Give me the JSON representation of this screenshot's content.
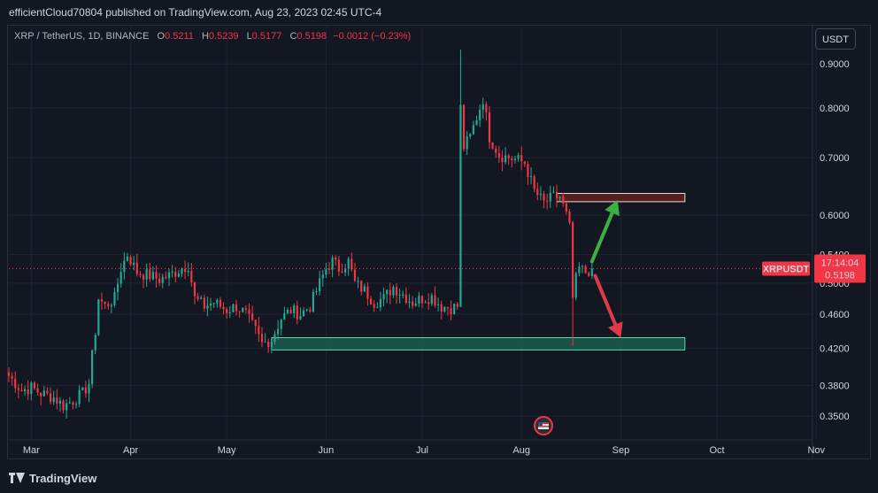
{
  "header": {
    "published_line": "efficientCloud70804 published on TradingView.com, Aug 23, 2023 02:45 UTC-4"
  },
  "legend": {
    "symbol": "XRP / TetherUS, 1D, BINANCE",
    "o_label": "O",
    "o_value": "0.5211",
    "h_label": "H",
    "h_value": "0.5239",
    "l_label": "L",
    "l_value": "0.5177",
    "c_label": "C",
    "c_value": "0.5198",
    "change": "−0.0012 (−0.23%)"
  },
  "currency_button": "USDT",
  "price_label": {
    "ticker": "XRPUSDT",
    "countdown": "17:14:04",
    "value": "0.5198"
  },
  "footer": {
    "brand": "TradingView"
  },
  "colors": {
    "up": "#22ab94",
    "down": "#f23645",
    "bg": "#131722",
    "green_zone": "#2db58c",
    "red_zone": "#c0392b",
    "arrow_green": "#3cb043",
    "arrow_red": "#e03a4a"
  },
  "icons": {
    "event": "us-flag-event-icon",
    "logo": "tradingview-logo-icon"
  },
  "chart_data": {
    "type": "candlestick",
    "title": "XRP / TetherUS, 1D, BINANCE",
    "y_scale": "log",
    "ylim": [
      0.33,
      0.96
    ],
    "xlim": [
      "2023-02-22",
      "2023-10-30"
    ],
    "y_ticks": [
      "0.9000",
      "0.8000",
      "0.7000",
      "0.6000",
      "0.5400",
      "0.5000",
      "0.4600",
      "0.4200",
      "0.3800",
      "0.3500"
    ],
    "x_ticks": [
      {
        "label": "Mar",
        "date": "2023-03-01"
      },
      {
        "label": "Apr",
        "date": "2023-04-01"
      },
      {
        "label": "May",
        "date": "2023-05-01"
      },
      {
        "label": "Jun",
        "date": "2023-06-01"
      },
      {
        "label": "Jul",
        "date": "2023-07-01"
      },
      {
        "label": "Aug",
        "date": "2023-08-01"
      },
      {
        "label": "Sep",
        "date": "2023-09-01"
      },
      {
        "label": "Oct",
        "date": "2023-10-01"
      },
      {
        "label": "Nov",
        "date": "2023-11-01"
      }
    ],
    "close_path": [
      [
        "2023-02-22",
        0.39
      ],
      [
        "2023-02-26",
        0.375
      ],
      [
        "2023-03-01",
        0.378
      ],
      [
        "2023-03-04",
        0.372
      ],
      [
        "2023-03-08",
        0.368
      ],
      [
        "2023-03-11",
        0.36
      ],
      [
        "2023-03-14",
        0.365
      ],
      [
        "2023-03-17",
        0.372
      ],
      [
        "2023-03-19",
        0.382
      ],
      [
        "2023-03-21",
        0.44
      ],
      [
        "2023-03-22",
        0.48
      ],
      [
        "2023-03-24",
        0.47
      ],
      [
        "2023-03-27",
        0.48
      ],
      [
        "2023-03-29",
        0.52
      ],
      [
        "2023-03-31",
        0.54
      ],
      [
        "2023-04-03",
        0.515
      ],
      [
        "2023-04-07",
        0.51
      ],
      [
        "2023-04-10",
        0.505
      ],
      [
        "2023-04-13",
        0.51
      ],
      [
        "2023-04-16",
        0.518
      ],
      [
        "2023-04-19",
        0.525
      ],
      [
        "2023-04-21",
        0.48
      ],
      [
        "2023-04-24",
        0.47
      ],
      [
        "2023-04-27",
        0.475
      ],
      [
        "2023-05-01",
        0.465
      ],
      [
        "2023-05-04",
        0.47
      ],
      [
        "2023-05-07",
        0.46
      ],
      [
        "2023-05-10",
        0.44
      ],
      [
        "2023-05-12",
        0.425
      ],
      [
        "2023-05-15",
        0.43
      ],
      [
        "2023-05-18",
        0.455
      ],
      [
        "2023-05-21",
        0.465
      ],
      [
        "2023-05-24",
        0.46
      ],
      [
        "2023-05-27",
        0.47
      ],
      [
        "2023-05-30",
        0.5
      ],
      [
        "2023-06-01",
        0.52
      ],
      [
        "2023-06-03",
        0.53
      ],
      [
        "2023-06-05",
        0.52
      ],
      [
        "2023-06-08",
        0.53
      ],
      [
        "2023-06-10",
        0.5
      ],
      [
        "2023-06-13",
        0.49
      ],
      [
        "2023-06-16",
        0.475
      ],
      [
        "2023-06-19",
        0.48
      ],
      [
        "2023-06-22",
        0.495
      ],
      [
        "2023-06-25",
        0.485
      ],
      [
        "2023-06-28",
        0.475
      ],
      [
        "2023-07-01",
        0.48
      ],
      [
        "2023-07-04",
        0.482
      ],
      [
        "2023-07-07",
        0.47
      ],
      [
        "2023-07-10",
        0.468
      ],
      [
        "2023-07-12",
        0.47
      ],
      [
        "2023-07-13",
        0.8
      ],
      [
        "2023-07-14",
        0.72
      ],
      [
        "2023-07-16",
        0.74
      ],
      [
        "2023-07-18",
        0.78
      ],
      [
        "2023-07-20",
        0.82
      ],
      [
        "2023-07-22",
        0.74
      ],
      [
        "2023-07-25",
        0.705
      ],
      [
        "2023-07-28",
        0.7
      ],
      [
        "2023-07-31",
        0.695
      ],
      [
        "2023-08-02",
        0.69
      ],
      [
        "2023-08-05",
        0.64
      ],
      [
        "2023-08-08",
        0.62
      ],
      [
        "2023-08-11",
        0.63
      ],
      [
        "2023-08-13",
        0.63
      ],
      [
        "2023-08-15",
        0.6
      ],
      [
        "2023-08-16",
        0.58
      ],
      [
        "2023-08-17",
        0.48
      ],
      [
        "2023-08-18",
        0.505
      ],
      [
        "2023-08-19",
        0.52
      ],
      [
        "2023-08-21",
        0.515
      ],
      [
        "2023-08-23",
        0.5198
      ]
    ],
    "zones": [
      {
        "type": "resistance",
        "from": "2023-08-12",
        "to": "2023-09-21",
        "y_low": 0.622,
        "y_high": 0.636
      },
      {
        "type": "support",
        "from": "2023-05-15",
        "to": "2023-09-21",
        "y_low": 0.418,
        "y_high": 0.432
      }
    ],
    "arrows": [
      {
        "direction": "up",
        "from": [
          "2023-08-23",
          0.53
        ],
        "to": [
          "2023-08-31",
          0.625
        ]
      },
      {
        "direction": "down",
        "from": [
          "2023-08-24",
          0.51
        ],
        "to": [
          "2023-09-01",
          0.432
        ]
      }
    ],
    "last_price": 0.5198
  }
}
